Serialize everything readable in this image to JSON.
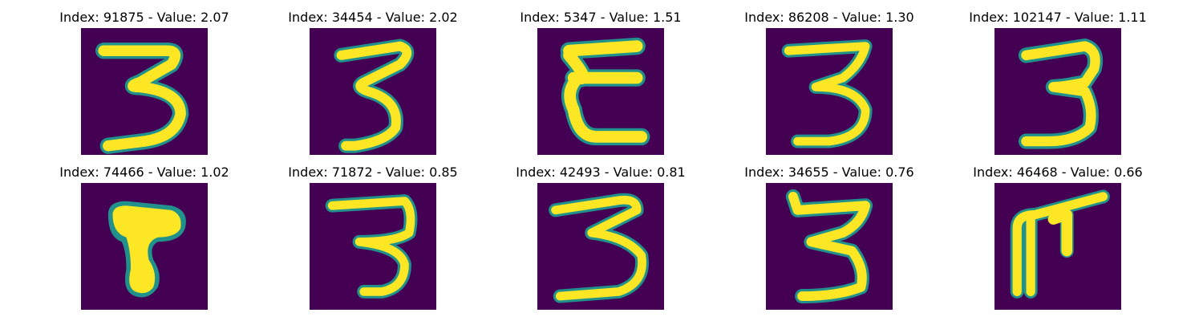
{
  "colors": {
    "background": "#440154",
    "stroke_outer": "#21918c",
    "stroke_mid": "#5ec962",
    "stroke_core": "#fde725"
  },
  "panels": [
    {
      "title": "Index: 91875 - Value: 2.07",
      "glyph": "digit-3"
    },
    {
      "title": "Index: 34454 - Value: 2.02",
      "glyph": "digit-3"
    },
    {
      "title": "Index: 5347 - Value: 1.51",
      "glyph": "digit-3-flat"
    },
    {
      "title": "Index: 86208 - Value: 1.30",
      "glyph": "digit-3"
    },
    {
      "title": "Index: 102147 - Value: 1.11",
      "glyph": "digit-3"
    },
    {
      "title": "Index: 74466 - Value: 1.02",
      "glyph": "blob-t"
    },
    {
      "title": "Index: 71872 - Value: 0.85",
      "glyph": "digit-3"
    },
    {
      "title": "Index: 42493 - Value: 0.81",
      "glyph": "digit-3"
    },
    {
      "title": "Index: 34655 - Value: 0.76",
      "glyph": "digit-3"
    },
    {
      "title": "Index: 46468 - Value: 0.66",
      "glyph": "hook-shape"
    }
  ]
}
